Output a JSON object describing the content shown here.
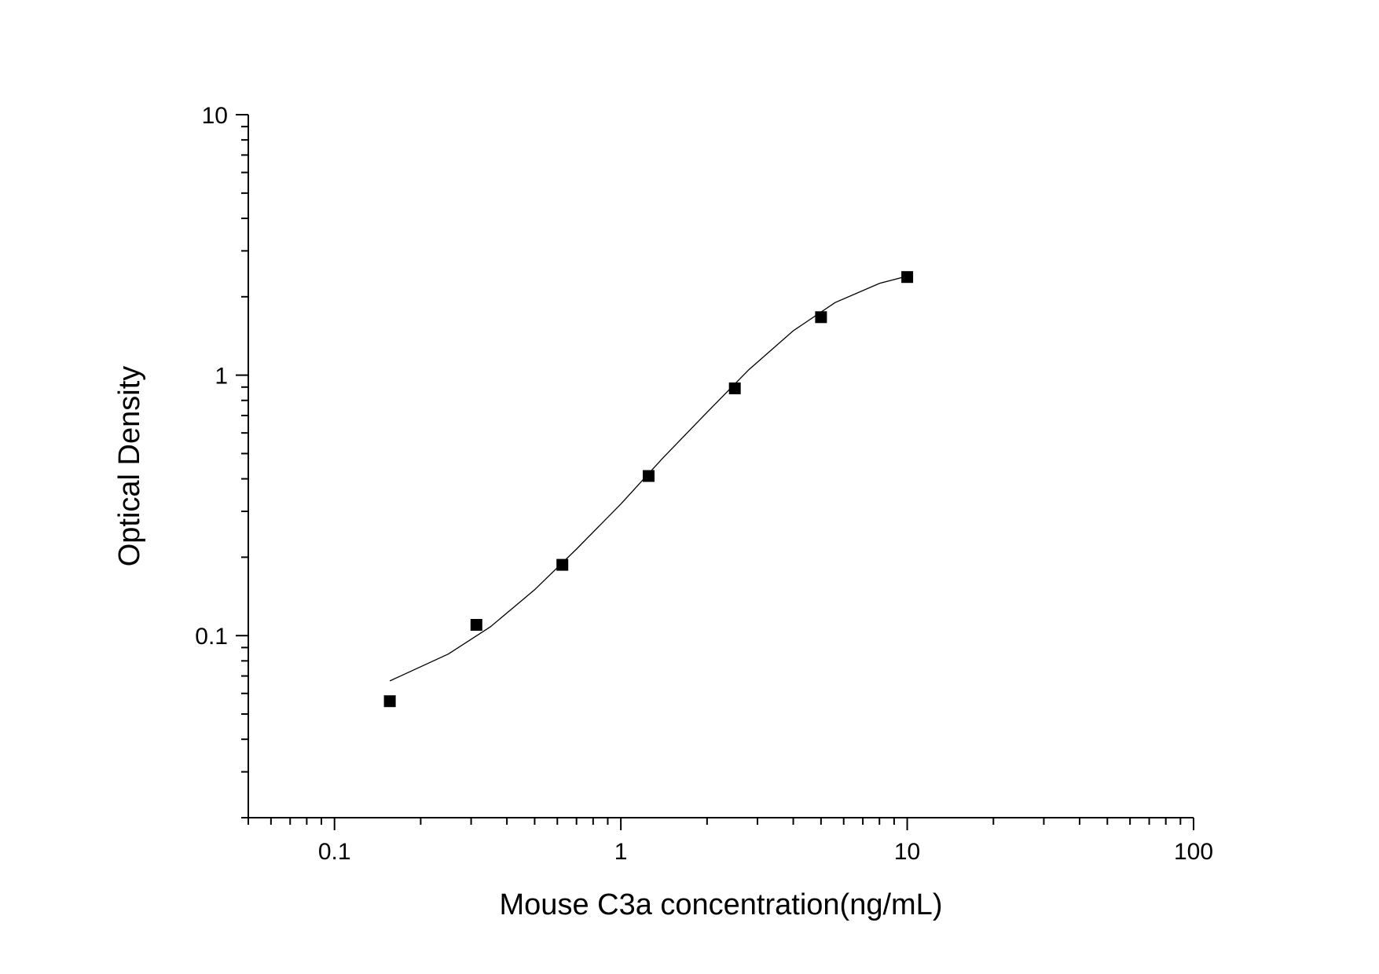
{
  "chart_data": {
    "type": "scatter",
    "xlabel": "Mouse C3a concentration(ng/mL)",
    "ylabel": "Optical Density",
    "x_scale": "log",
    "y_scale": "log",
    "xlim": [
      0.05,
      100
    ],
    "ylim": [
      0.02,
      10
    ],
    "x_ticks": [
      0.1,
      1,
      10,
      100
    ],
    "x_tick_labels": [
      "0.1",
      "1",
      "10",
      "100"
    ],
    "y_ticks": [
      0.1,
      1,
      10
    ],
    "y_tick_labels": [
      "0.1",
      "1",
      "10"
    ],
    "grid": false,
    "series": [
      {
        "marker": "square",
        "color": "#000000",
        "x": [
          0.156,
          0.313,
          0.625,
          1.25,
          2.5,
          5,
          10
        ],
        "y": [
          0.056,
          0.11,
          0.187,
          0.41,
          0.89,
          1.67,
          2.38
        ]
      }
    ],
    "fit_curve": {
      "color": "#000000",
      "x": [
        0.156,
        0.25,
        0.35,
        0.5,
        0.7,
        1.0,
        1.4,
        2.0,
        2.8,
        4.0,
        5.6,
        8.0,
        10.0
      ],
      "y": [
        0.067,
        0.085,
        0.108,
        0.15,
        0.215,
        0.32,
        0.48,
        0.72,
        1.05,
        1.48,
        1.9,
        2.25,
        2.4
      ]
    }
  }
}
